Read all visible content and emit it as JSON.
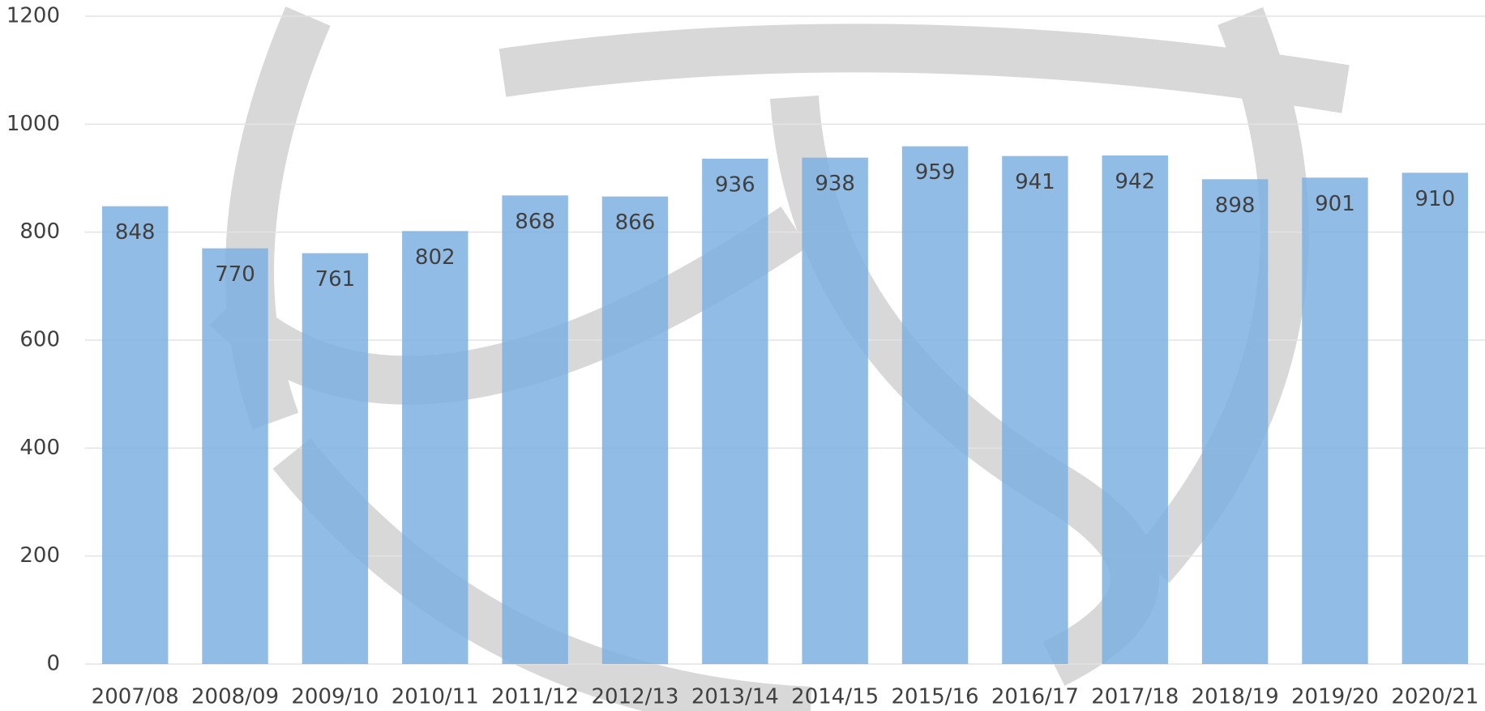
{
  "chart_data": {
    "type": "bar",
    "categories": [
      "2007/08",
      "2008/09",
      "2009/10",
      "2010/11",
      "2011/12",
      "2012/13",
      "2013/14",
      "2014/15",
      "2015/16",
      "2016/17",
      "2017/18",
      "2018/19",
      "2019/20",
      "2020/21"
    ],
    "values": [
      848,
      770,
      761,
      802,
      868,
      866,
      936,
      938,
      959,
      941,
      942,
      898,
      901,
      910
    ],
    "color": "#7eb0e0",
    "ylim": [
      0,
      1200
    ],
    "yticks": [
      0,
      200,
      400,
      600,
      800,
      1000,
      1200
    ],
    "grid": true
  }
}
